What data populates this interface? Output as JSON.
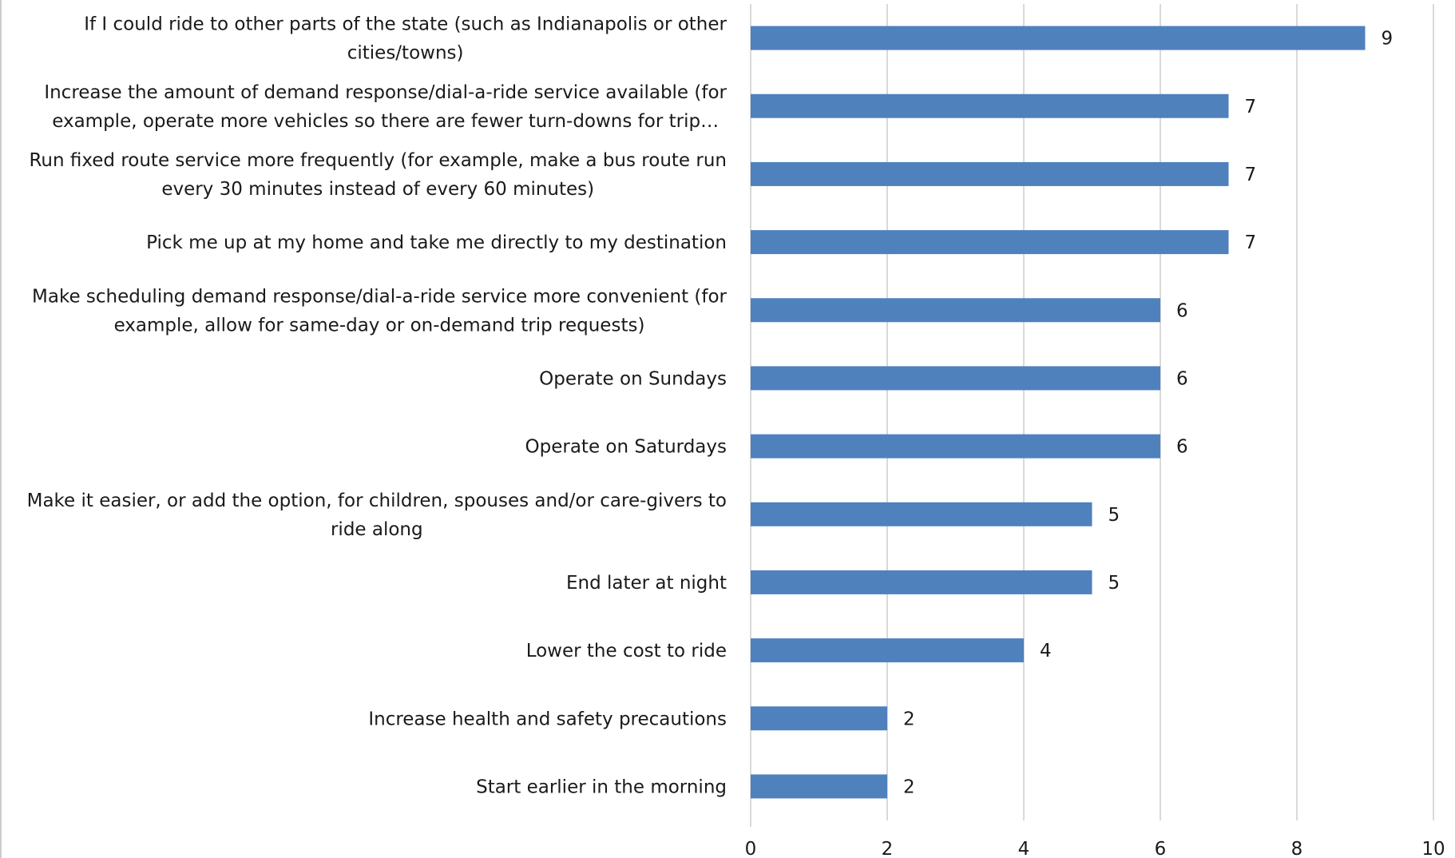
{
  "chart_data": {
    "type": "bar",
    "orientation": "horizontal",
    "categories": [
      "If I could ride to other parts of the state (such as Indianapolis or other cities/towns)",
      "Increase the amount of demand response/dial-a-ride service available (for example, operate more vehicles so there are fewer turn-downs for trip…",
      "Run fixed route service more frequently (for example, make a bus route run every 30 minutes instead of every 60 minutes)",
      "Pick me up at my home and take me directly to my destination",
      "Make scheduling demand response/dial-a-ride service more convenient (for example, allow for same-day or on-demand trip requests)",
      "Operate on Sundays",
      "Operate on Saturdays",
      "Make it easier, or add the option, for children, spouses and/or care-givers to ride along",
      "End later at night",
      "Lower the cost to ride",
      "Increase health and safety precautions",
      "Start earlier in the morning"
    ],
    "category_lines": [
      [
        "If I could ride to other parts of the state (such as Indianapolis or other",
        "cities/towns)"
      ],
      [
        "Increase the amount of demand response/dial-a-ride service available (for",
        "example, operate more vehicles so there are fewer turn-downs for trip…"
      ],
      [
        "Run fixed route service more frequently (for example, make a bus route run",
        "every 30 minutes instead of every 60 minutes)"
      ],
      [
        "Pick me up at my home and take me directly to my destination"
      ],
      [
        "Make scheduling demand response/dial-a-ride service more convenient (for",
        "example, allow for same-day or on-demand trip requests)"
      ],
      [
        "Operate on Sundays"
      ],
      [
        "Operate on Saturdays"
      ],
      [
        "Make it easier, or add the option, for children, spouses and/or care-givers to",
        "ride along"
      ],
      [
        "End later at night"
      ],
      [
        "Lower the cost to ride"
      ],
      [
        "Increase health and safety precautions"
      ],
      [
        "Start earlier in the morning"
      ]
    ],
    "values": [
      9,
      7,
      7,
      7,
      6,
      6,
      6,
      5,
      5,
      4,
      2,
      2
    ],
    "value_labels": [
      "9",
      "7",
      "7",
      "7",
      "6",
      "6",
      "6",
      "5",
      "5",
      "4",
      "2",
      "2"
    ],
    "xlim": [
      0,
      10
    ],
    "x_ticks": [
      0,
      2,
      4,
      6,
      8,
      10
    ],
    "x_tick_labels": [
      "0",
      "2",
      "4",
      "6",
      "8",
      "10"
    ],
    "title": "",
    "xlabel": "",
    "ylabel": "",
    "grid": true,
    "legend": "none",
    "colors": {
      "bar": "#4f81bd",
      "grid": "#d9d9d9",
      "text": "#1a1a1a",
      "frame": "#cccccc"
    }
  }
}
